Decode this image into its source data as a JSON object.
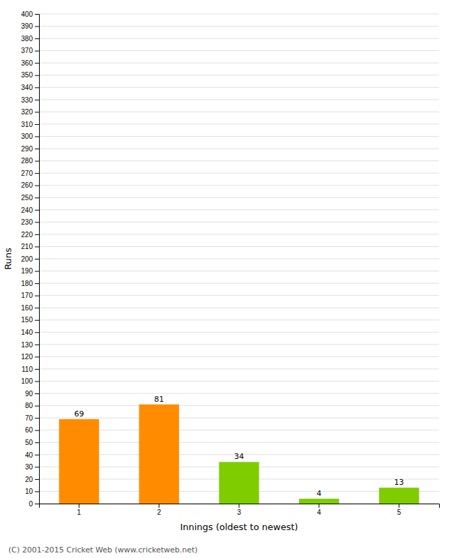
{
  "chart_data": {
    "type": "bar",
    "categories": [
      "1",
      "2",
      "3",
      "4",
      "5"
    ],
    "values": [
      69,
      81,
      34,
      4,
      13
    ],
    "colors": [
      "#FF8C00",
      "#FF8C00",
      "#7FCC00",
      "#7FCC00",
      "#7FCC00"
    ],
    "xlabel": "Innings (oldest to newest)",
    "ylabel": "Runs",
    "ylim": [
      0,
      400
    ],
    "yticks": [
      0,
      10,
      20,
      30,
      40,
      50,
      60,
      70,
      80,
      90,
      100,
      110,
      120,
      130,
      140,
      150,
      160,
      170,
      180,
      190,
      200,
      210,
      220,
      230,
      240,
      250,
      260,
      270,
      280,
      290,
      300,
      310,
      320,
      330,
      340,
      350,
      360,
      370,
      380,
      390,
      400
    ],
    "grid": true,
    "data_labels": true,
    "annotations": [
      "(C) 2001-2015 Cricket Web (www.cricketweb.net)"
    ]
  }
}
